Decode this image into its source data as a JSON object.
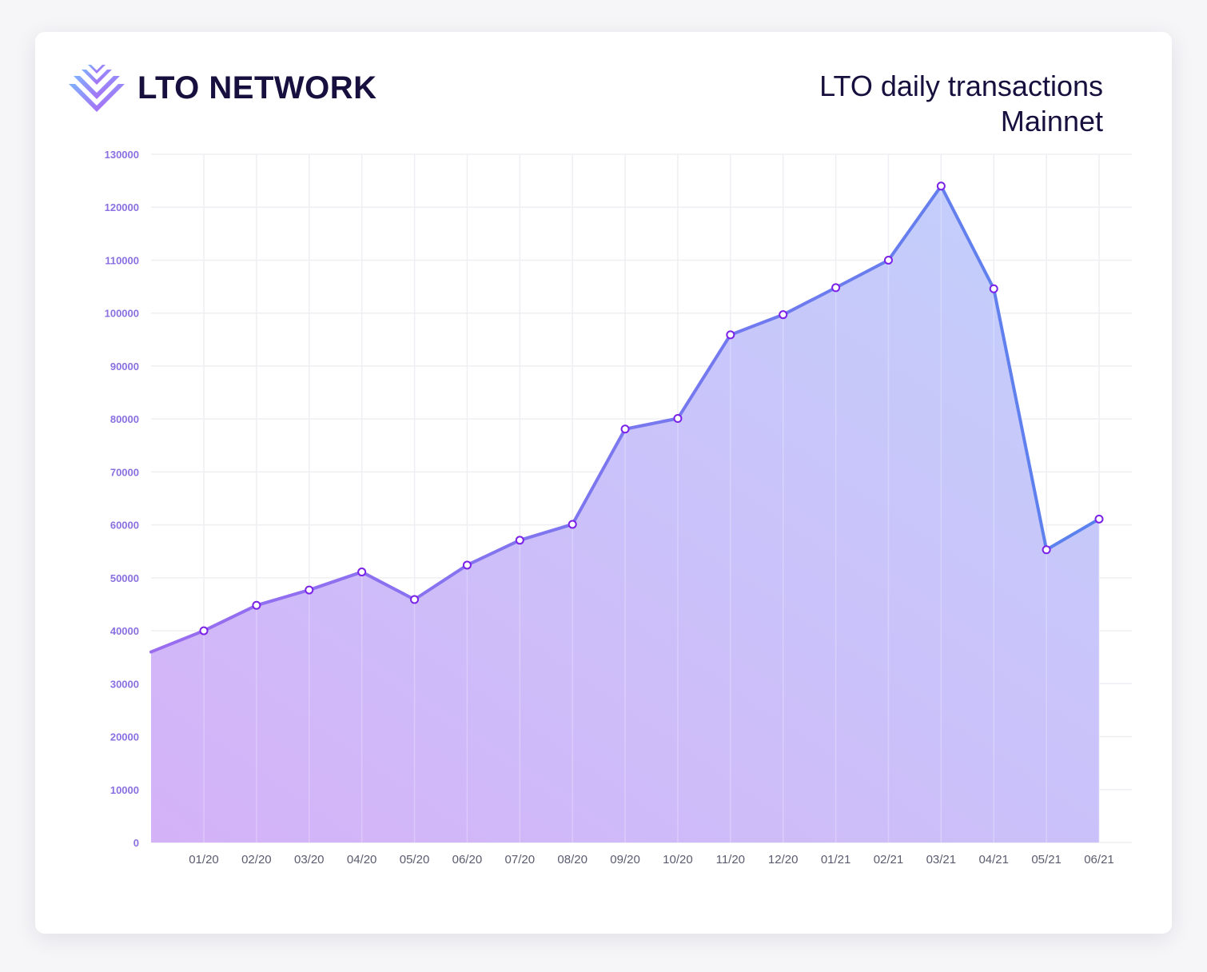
{
  "brand": {
    "name": "LTO NETWORK",
    "logo_icon": "lto-chevron-logo-icon"
  },
  "title": {
    "line1": "LTO daily transactions",
    "line2": "Mainnet"
  },
  "colors": {
    "line_start": "#9a6cf0",
    "line_end": "#5a82ee",
    "fill_start": "#d4b2f8",
    "fill_end": "#c2d0fb",
    "marker_stroke": "#7a22e8",
    "grid": "#efeff3",
    "tick_y": "#8a70e0",
    "tick_x": "#5b5b6e"
  },
  "chart_data": {
    "type": "area",
    "title": "LTO daily transactions",
    "subtitle": "Mainnet",
    "xlabel": "",
    "ylabel": "",
    "categories": [
      "01/20",
      "02/20",
      "03/20",
      "04/20",
      "05/20",
      "06/20",
      "07/20",
      "08/20",
      "09/20",
      "10/20",
      "11/20",
      "12/20",
      "01/21",
      "02/21",
      "03/21",
      "04/21",
      "05/21",
      "06/21"
    ],
    "start_value": 36000,
    "values": [
      40000,
      44800,
      47700,
      51100,
      45900,
      52400,
      57100,
      60100,
      78100,
      80100,
      95900,
      99700,
      104800,
      110000,
      124000,
      104600,
      55300,
      61100
    ],
    "ylim": [
      0,
      130000
    ],
    "yticks": [
      "0",
      "10000",
      "20000",
      "30000",
      "40000",
      "50000",
      "60000",
      "70000",
      "80000",
      "90000",
      "100000",
      "110000",
      "120000",
      "130000"
    ],
    "grid": true,
    "legend": "none",
    "markers": true
  }
}
